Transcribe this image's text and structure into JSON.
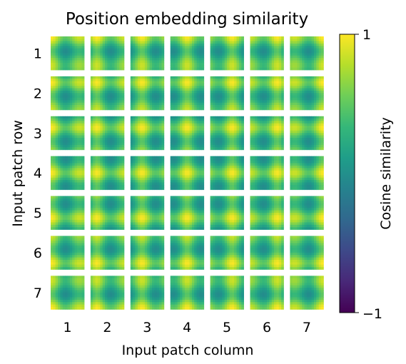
{
  "chart_data": {
    "type": "heatmap",
    "title": "Position embedding similarity",
    "xlabel": "Input patch column",
    "ylabel": "Input patch row",
    "row_labels": [
      "1",
      "2",
      "3",
      "4",
      "5",
      "6",
      "7"
    ],
    "column_labels": [
      "1",
      "2",
      "3",
      "4",
      "5",
      "6",
      "7"
    ],
    "grid": {
      "rows": 7,
      "cols": 7,
      "cells_per_tile": 14
    },
    "colorbar": {
      "label": "Cosine similarity",
      "range": [
        -1,
        1
      ],
      "tick_labels": [
        "1",
        "−1"
      ],
      "colormap": "viridis"
    },
    "value_range_in_tiles": [
      -0.2,
      1
    ]
  },
  "colors": {
    "viridis": [
      "#440154",
      "#482878",
      "#3e4989",
      "#31688e",
      "#26828e",
      "#1f9e89",
      "#35b779",
      "#6ece58",
      "#b5de2b",
      "#fde725"
    ]
  }
}
